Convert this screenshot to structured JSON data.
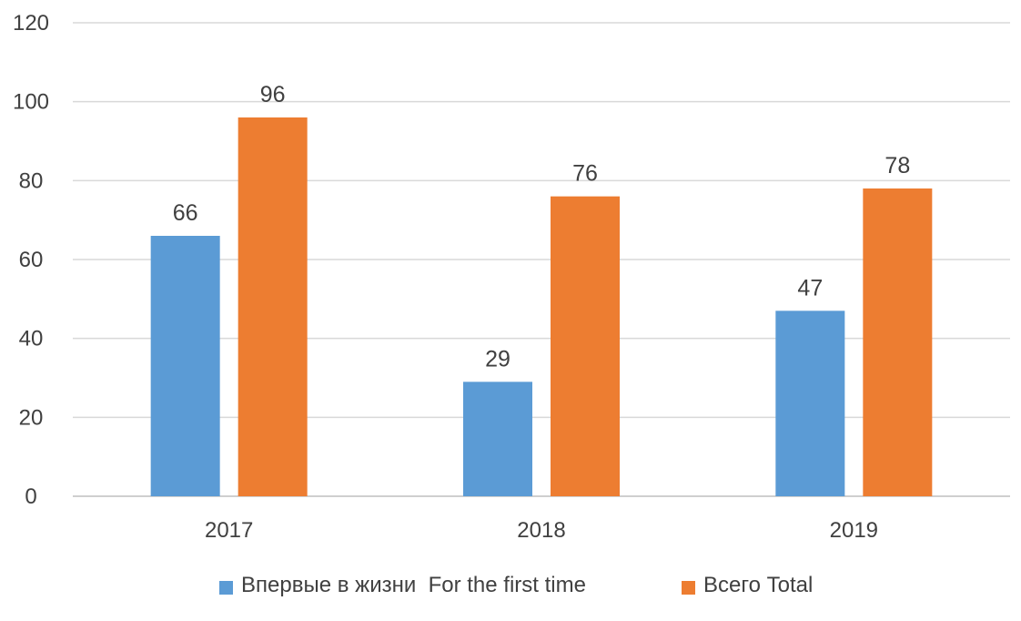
{
  "chart_data": {
    "type": "bar",
    "categories": [
      "2017",
      "2018",
      "2019"
    ],
    "series": [
      {
        "name": "Впервые в жизни  For the first time",
        "values": [
          66,
          29,
          47
        ],
        "color": "#5b9bd5"
      },
      {
        "name": "Всего Total",
        "values": [
          96,
          76,
          78
        ],
        "color": "#ed7d31"
      }
    ],
    "ylim": [
      0,
      120
    ],
    "yticks": [
      0,
      20,
      40,
      60,
      80,
      100,
      120
    ],
    "grid": true,
    "legend_position": "bottom",
    "data_labels": true
  }
}
